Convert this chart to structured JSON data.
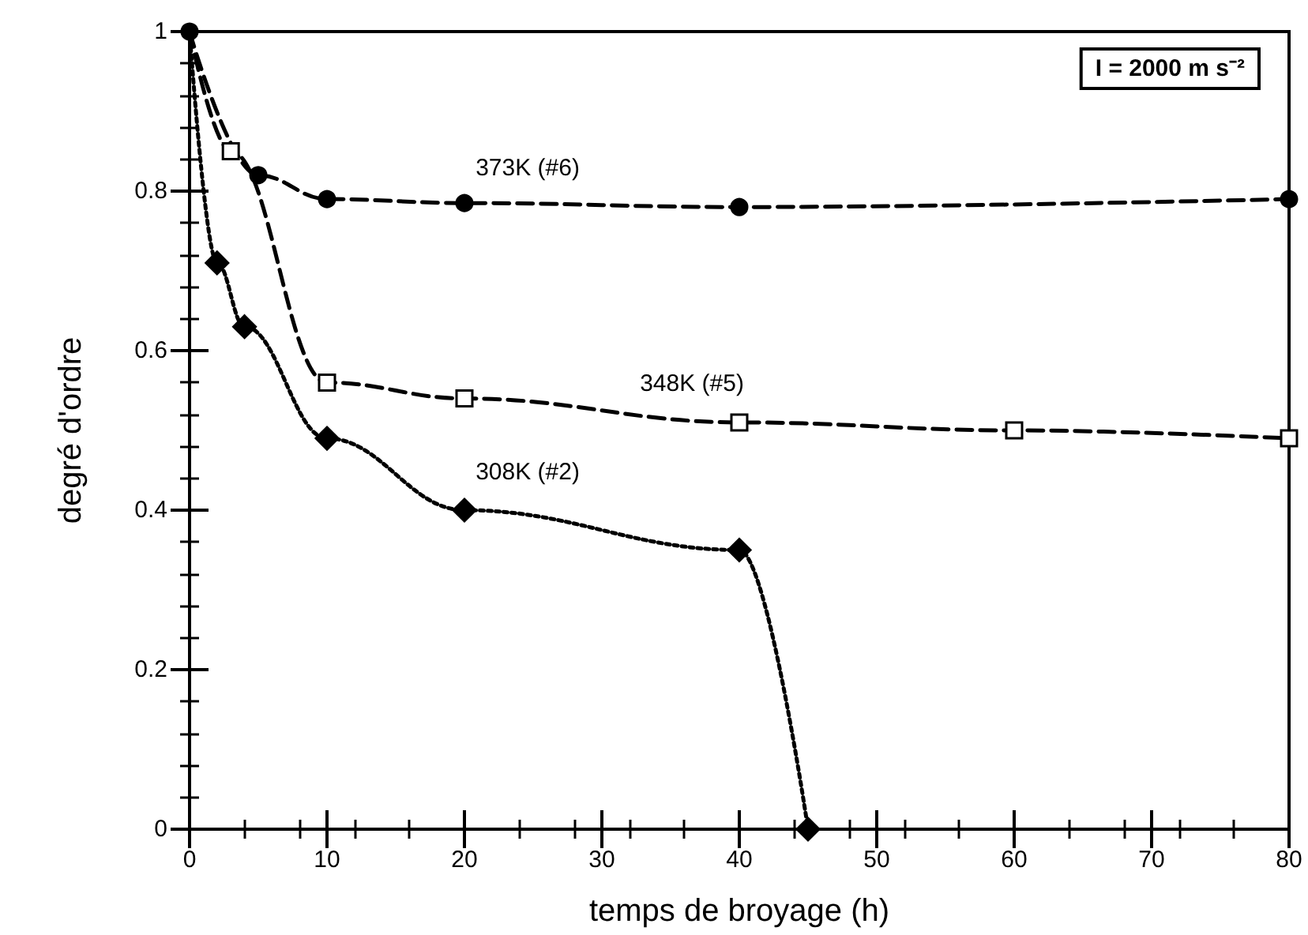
{
  "chart_data": {
    "type": "line",
    "xlabel": "temps de broyage (h)",
    "ylabel": "degré d'ordre",
    "xlim": [
      0,
      80
    ],
    "xticks": [
      0,
      10,
      20,
      30,
      40,
      50,
      60,
      70,
      80
    ],
    "ylim": [
      0,
      1
    ],
    "yticks": [
      0,
      0.2,
      0.4,
      0.6,
      0.8,
      1
    ],
    "grid": false,
    "legend": false,
    "annotations": [
      "I = 2000 m s⁻²"
    ],
    "series": [
      {
        "name": "373K (#6)",
        "color": "#000000",
        "marker": "circle",
        "line_style": "dashed",
        "x": [
          0,
          5,
          10,
          20,
          40,
          80
        ],
        "values": [
          1,
          0.82,
          0.79,
          0.785,
          0.78,
          0.79
        ]
      },
      {
        "name": "348K (#5)",
        "color": "#000000",
        "marker": "square",
        "line_style": "dashed",
        "x": [
          0,
          3,
          10,
          20,
          40,
          60,
          80
        ],
        "values": [
          1,
          0.85,
          0.56,
          0.54,
          0.51,
          0.5,
          0.49
        ]
      },
      {
        "name": "308K (#2)",
        "color": "#000000",
        "marker": "diamond",
        "line_style": "dotted",
        "x": [
          0,
          2,
          4,
          10,
          20,
          40,
          45
        ],
        "values": [
          1,
          0.71,
          0.63,
          0.49,
          0.4,
          0.35,
          0
        ]
      }
    ]
  }
}
